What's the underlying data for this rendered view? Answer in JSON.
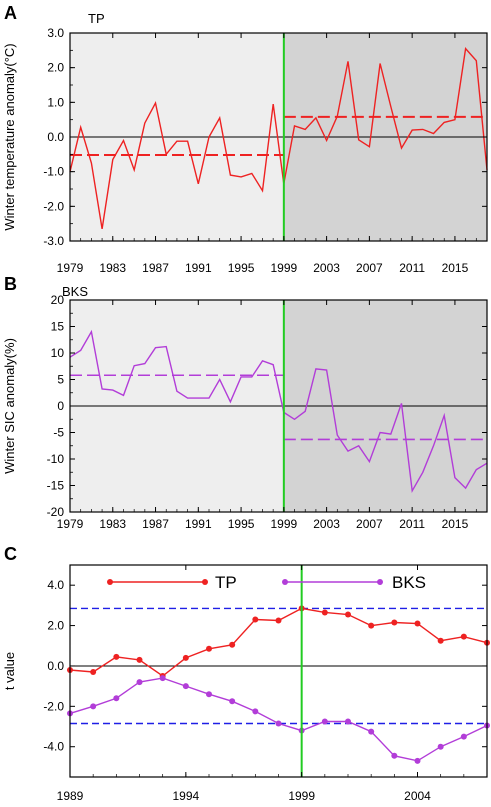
{
  "colors": {
    "tp": "#ee2222",
    "bks": "#b23dd8",
    "vline": "#22cc22",
    "crit": "#1f1fe6",
    "bg_before": "#eeeeee",
    "bg_after": "#d3d3d3",
    "zero": "#000000"
  },
  "chart_data": [
    {
      "type": "line",
      "panel_letter": "A",
      "panel_tag": "TP",
      "ylabel": "Winter temperature anomaly(°C)",
      "ylim": [
        -3.0,
        3.0
      ],
      "yticks": [
        3.0,
        2.0,
        1.0,
        0.0,
        -1.0,
        -2.0,
        -3.0
      ],
      "ytick_labels": [
        "3.0",
        "2.0",
        "1.0",
        "0.0",
        "-1.0",
        "-2.0",
        "-3.0"
      ],
      "xlim": [
        1979,
        2018
      ],
      "xticks": [
        1979,
        1983,
        1987,
        1991,
        1995,
        1999,
        2003,
        2007,
        2011,
        2015
      ],
      "xtick_labels": [
        "1979",
        "1983",
        "1987",
        "1991",
        "1995",
        "1999",
        "2003",
        "2007",
        "2011",
        "2015"
      ],
      "shading_split": 1999,
      "grid": false,
      "series": [
        {
          "x": [
            1979,
            1980,
            1981,
            1982,
            1983,
            1984,
            1985,
            1986,
            1987,
            1988,
            1989,
            1990,
            1991,
            1992,
            1993,
            1994,
            1995,
            1996,
            1997,
            1998,
            1999,
            2000,
            2001,
            2002,
            2003,
            2004,
            2005,
            2006,
            2007,
            2008,
            2009,
            2010,
            2011,
            2012,
            2013,
            2014,
            2015,
            2016,
            2017,
            2018
          ],
          "values": [
            -1.0,
            0.28,
            -0.75,
            -2.65,
            -0.65,
            -0.1,
            -0.95,
            0.4,
            0.98,
            -0.5,
            -0.12,
            -0.12,
            -1.35,
            0.0,
            0.55,
            -1.1,
            -1.15,
            -1.05,
            -1.55,
            0.95,
            -1.35,
            0.32,
            0.22,
            0.55,
            -0.1,
            0.6,
            2.18,
            -0.08,
            -0.28,
            2.12,
            0.88,
            -0.32,
            0.2,
            0.22,
            0.1,
            0.42,
            0.5,
            2.55,
            2.2,
            -0.95
          ]
        }
      ],
      "mean_lines": [
        {
          "x": [
            1979,
            1999
          ],
          "value": -0.52
        },
        {
          "x": [
            1999,
            2018
          ],
          "value": 0.58
        }
      ]
    },
    {
      "type": "line",
      "panel_letter": "B",
      "panel_tag": "BKS",
      "ylabel": "Winter SIC anomaly(%)",
      "ylim": [
        -20,
        20
      ],
      "yticks": [
        20,
        15,
        10,
        5,
        0,
        -5,
        -10,
        -15,
        -20
      ],
      "ytick_labels": [
        "20",
        "15",
        "10",
        "5",
        "0",
        "-5",
        "-10",
        "-15",
        "-20"
      ],
      "xlim": [
        1979,
        2018
      ],
      "xticks": [
        1979,
        1983,
        1987,
        1991,
        1995,
        1999,
        2003,
        2007,
        2011,
        2015
      ],
      "xtick_labels": [
        "1979",
        "1983",
        "1987",
        "1991",
        "1995",
        "1999",
        "2003",
        "2007",
        "2011",
        "2015"
      ],
      "shading_split": 1999,
      "grid": false,
      "series": [
        {
          "x": [
            1979,
            1980,
            1981,
            1982,
            1983,
            1984,
            1985,
            1986,
            1987,
            1988,
            1989,
            1990,
            1991,
            1992,
            1993,
            1994,
            1995,
            1996,
            1997,
            1998,
            1999,
            2000,
            2001,
            2002,
            2003,
            2004,
            2005,
            2006,
            2007,
            2008,
            2009,
            2010,
            2011,
            2012,
            2013,
            2014,
            2015,
            2016,
            2017,
            2018
          ],
          "values": [
            9.2,
            10.5,
            14.0,
            3.2,
            3.0,
            2.0,
            7.6,
            8.0,
            11.0,
            11.2,
            2.8,
            1.5,
            1.5,
            1.5,
            5.0,
            0.8,
            5.5,
            5.5,
            8.5,
            7.8,
            -1.2,
            -2.5,
            -1.0,
            7.0,
            6.8,
            -5.5,
            -8.5,
            -7.5,
            -10.5,
            -5.0,
            -5.3,
            0.5,
            -16.0,
            -12.5,
            -7.5,
            -1.8,
            -13.5,
            -15.5,
            -12.0,
            -10.8
          ]
        }
      ],
      "mean_lines": [
        {
          "x": [
            1979,
            1999
          ],
          "value": 5.8
        },
        {
          "x": [
            1999,
            2018
          ],
          "value": -6.3
        }
      ]
    },
    {
      "type": "line",
      "panel_letter": "C",
      "ylabel": "t value",
      "ylim": [
        -5.5,
        5.0
      ],
      "yticks": [
        4.0,
        2.0,
        0.0,
        -2.0,
        -4.0
      ],
      "ytick_labels": [
        "4.0",
        "2.0",
        "0.0",
        "-2.0",
        "-4.0"
      ],
      "xlim": [
        1989,
        2007
      ],
      "xticks": [
        1989,
        1994,
        1999,
        2004
      ],
      "xtick_labels": [
        "1989",
        "1994",
        "1999",
        "2004"
      ],
      "vline": 1999,
      "critical_values": [
        2.85,
        -2.85
      ],
      "legend_placement": "top",
      "grid": false,
      "series": [
        {
          "name": "TP",
          "x": [
            1989,
            1990,
            1991,
            1992,
            1993,
            1994,
            1995,
            1996,
            1997,
            1998,
            1999,
            2000,
            2001,
            2002,
            2003,
            2004,
            2005,
            2006,
            2007
          ],
          "values": [
            -0.2,
            -0.3,
            0.45,
            0.3,
            -0.5,
            0.4,
            0.85,
            1.05,
            2.3,
            2.25,
            2.85,
            2.65,
            2.55,
            2.0,
            2.15,
            2.1,
            1.25,
            1.45,
            1.15
          ]
        },
        {
          "name": "BKS",
          "x": [
            1989,
            1990,
            1991,
            1992,
            1993,
            1994,
            1995,
            1996,
            1997,
            1998,
            1999,
            2000,
            2001,
            2002,
            2003,
            2004,
            2005,
            2006,
            2007
          ],
          "values": [
            -2.35,
            -2.0,
            -1.6,
            -0.8,
            -0.6,
            -1.0,
            -1.4,
            -1.75,
            -2.25,
            -2.85,
            -3.2,
            -2.75,
            -2.75,
            -3.25,
            -4.45,
            -4.7,
            -4.0,
            -3.5,
            -2.95
          ]
        }
      ]
    }
  ]
}
